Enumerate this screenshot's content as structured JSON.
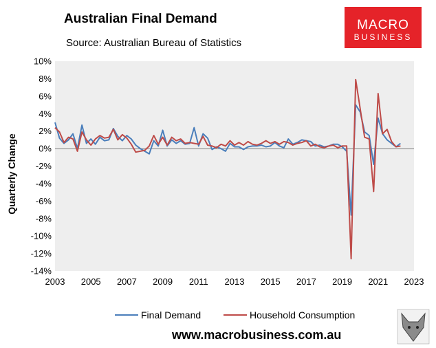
{
  "chart_data": {
    "type": "line",
    "title": "Australian Final Demand",
    "subtitle": "Source: Australian Bureau of Statistics",
    "ylabel": "Quarterly Change",
    "xlabel": "",
    "xlim": [
      2003,
      2023
    ],
    "ylim": [
      -14,
      10
    ],
    "x_ticks": [
      "2003",
      "2005",
      "2007",
      "2009",
      "2011",
      "2013",
      "2015",
      "2017",
      "2019",
      "2021",
      "2023"
    ],
    "y_ticks": [
      "10%",
      "8%",
      "6%",
      "4%",
      "2%",
      "0%",
      "-2%",
      "-4%",
      "-6%",
      "-8%",
      "-10%",
      "-12%",
      "-14%"
    ],
    "grid": "none",
    "legend": "bottom",
    "series": [
      {
        "name": "Final Demand",
        "color": "#4a7ebb",
        "x": [
          2003.0,
          2003.25,
          2003.5,
          2003.75,
          2004.0,
          2004.25,
          2004.5,
          2004.75,
          2005.0,
          2005.25,
          2005.5,
          2005.75,
          2006.0,
          2006.25,
          2006.5,
          2006.75,
          2007.0,
          2007.25,
          2007.5,
          2007.75,
          2008.0,
          2008.25,
          2008.5,
          2008.75,
          2009.0,
          2009.25,
          2009.5,
          2009.75,
          2010.0,
          2010.25,
          2010.5,
          2010.75,
          2011.0,
          2011.25,
          2011.5,
          2011.75,
          2012.0,
          2012.25,
          2012.5,
          2012.75,
          2013.0,
          2013.25,
          2013.5,
          2013.75,
          2014.0,
          2014.25,
          2014.5,
          2014.75,
          2015.0,
          2015.25,
          2015.5,
          2015.75,
          2016.0,
          2016.25,
          2016.5,
          2016.75,
          2017.0,
          2017.25,
          2017.5,
          2017.75,
          2018.0,
          2018.25,
          2018.5,
          2018.75,
          2019.0,
          2019.25,
          2019.5,
          2019.75,
          2020.0,
          2020.25,
          2020.5,
          2020.75,
          2021.0,
          2021.25,
          2021.5,
          2021.75,
          2022.0,
          2022.25
        ],
        "values": [
          3.0,
          1.2,
          0.6,
          1.0,
          1.7,
          0.0,
          2.7,
          0.6,
          1.1,
          0.5,
          1.3,
          0.9,
          1.0,
          2.3,
          1.4,
          0.9,
          1.5,
          1.1,
          0.4,
          0.0,
          -0.3,
          -0.6,
          0.9,
          0.3,
          2.1,
          0.3,
          1.0,
          0.6,
          0.9,
          0.5,
          0.6,
          2.4,
          0.3,
          1.7,
          1.2,
          -0.1,
          0.2,
          0.0,
          -0.3,
          0.6,
          0.2,
          0.2,
          -0.1,
          0.2,
          0.3,
          0.3,
          0.4,
          0.2,
          0.3,
          0.7,
          0.3,
          0.1,
          1.1,
          0.5,
          0.7,
          1.0,
          0.9,
          0.8,
          0.3,
          0.4,
          0.2,
          0.3,
          0.5,
          0.5,
          0.2,
          -0.3,
          -7.6,
          5.0,
          4.2,
          1.9,
          1.5,
          -1.8,
          3.5,
          1.7,
          1.0,
          0.6,
          0.2,
          0.6
        ]
      },
      {
        "name": "Household Consumption",
        "color": "#be4b48",
        "x": [
          2003.0,
          2003.25,
          2003.5,
          2003.75,
          2004.0,
          2004.25,
          2004.5,
          2004.75,
          2005.0,
          2005.25,
          2005.5,
          2005.75,
          2006.0,
          2006.25,
          2006.5,
          2006.75,
          2007.0,
          2007.25,
          2007.5,
          2007.75,
          2008.0,
          2008.25,
          2008.5,
          2008.75,
          2009.0,
          2009.25,
          2009.5,
          2009.75,
          2010.0,
          2010.25,
          2010.5,
          2010.75,
          2011.0,
          2011.25,
          2011.5,
          2011.75,
          2012.0,
          2012.25,
          2012.5,
          2012.75,
          2013.0,
          2013.25,
          2013.5,
          2013.75,
          2014.0,
          2014.25,
          2014.5,
          2014.75,
          2015.0,
          2015.25,
          2015.5,
          2015.75,
          2016.0,
          2016.25,
          2016.5,
          2016.75,
          2017.0,
          2017.25,
          2017.5,
          2017.75,
          2018.0,
          2018.25,
          2018.5,
          2018.75,
          2019.0,
          2019.25,
          2019.5,
          2019.75,
          2020.0,
          2020.25,
          2020.5,
          2020.75,
          2021.0,
          2021.25,
          2021.5,
          2021.75,
          2022.0,
          2022.25
        ],
        "values": [
          2.4,
          1.9,
          0.7,
          1.3,
          1.1,
          -0.3,
          1.9,
          1.0,
          0.4,
          1.1,
          1.5,
          1.2,
          1.3,
          2.2,
          1.0,
          1.6,
          1.2,
          0.5,
          -0.4,
          -0.3,
          -0.2,
          0.3,
          1.5,
          0.5,
          1.3,
          0.4,
          1.3,
          0.9,
          1.1,
          0.6,
          0.7,
          0.6,
          0.5,
          1.4,
          0.4,
          0.3,
          0.1,
          0.5,
          0.3,
          0.9,
          0.4,
          0.7,
          0.4,
          0.8,
          0.5,
          0.4,
          0.6,
          0.9,
          0.6,
          0.8,
          0.5,
          0.8,
          0.7,
          0.4,
          0.6,
          0.7,
          0.9,
          0.3,
          0.5,
          0.2,
          0.1,
          0.3,
          0.4,
          0.1,
          0.3,
          0.3,
          -12.6,
          7.9,
          4.6,
          1.3,
          1.1,
          -4.9,
          6.3,
          1.7,
          2.2,
          0.8,
          0.2,
          0.3
        ]
      }
    ]
  },
  "logo": {
    "line1": "MACRO",
    "line2": "BUSINESS"
  },
  "footer": {
    "url": "www.macrobusiness.com.au"
  },
  "colors": {
    "plot_bg": "#eeeeee",
    "logo_bg": "#e52329"
  }
}
